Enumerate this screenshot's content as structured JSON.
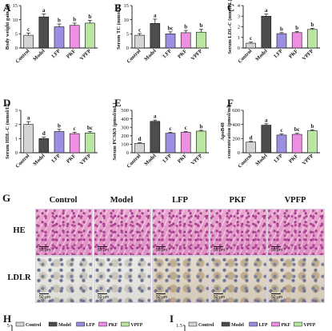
{
  "panels": [
    {
      "letter": "A",
      "ylabel": "Body weight gain (g)",
      "ymax": 15,
      "ticks": [
        0,
        5,
        10,
        15
      ],
      "values": [
        4.5,
        11.0,
        7.5,
        8.0,
        8.8
      ],
      "errors": [
        0.8,
        1.0,
        1.0,
        0.8,
        1.0
      ],
      "sig": [
        "c",
        "a",
        "b",
        "b",
        "b"
      ]
    },
    {
      "letter": "B",
      "ylabel": "Serum TC (mmol/L)",
      "ymax": 15,
      "ticks": [
        0,
        5,
        10,
        15
      ],
      "values": [
        4.5,
        8.7,
        5.0,
        5.4,
        5.6
      ],
      "errors": [
        0.6,
        1.5,
        0.7,
        0.8,
        1.0
      ],
      "sig": [
        "c",
        "a",
        "bc",
        "b",
        "b"
      ]
    },
    {
      "letter": "C",
      "ylabel": "Serum LDL-C (mmol/L)",
      "ymax": 4,
      "ticks": [
        0,
        1,
        2,
        3,
        4
      ],
      "values": [
        0.45,
        3.0,
        1.35,
        1.45,
        1.75
      ],
      "errors": [
        0.1,
        0.2,
        0.1,
        0.1,
        0.1
      ],
      "sig": [
        "c",
        "a",
        "b",
        "b",
        "b"
      ]
    },
    {
      "letter": "D",
      "ylabel": "Serum HDL-C (mmol/L)",
      "ymax": 3,
      "ticks": [
        0,
        1,
        2,
        3
      ],
      "values": [
        2.0,
        1.0,
        1.5,
        1.35,
        1.4
      ],
      "errors": [
        0.2,
        0.1,
        0.15,
        0.1,
        0.1
      ],
      "sig": [
        "a",
        "d",
        "b",
        "c",
        "bc"
      ]
    },
    {
      "letter": "E",
      "ylabel": "Serum PCSK9 (pmol/mL)",
      "ymax": 500,
      "ticks": [
        0,
        100,
        200,
        300,
        400,
        500
      ],
      "values": [
        110,
        370,
        230,
        240,
        255
      ],
      "errors": [
        8,
        15,
        10,
        10,
        10
      ],
      "sig": [
        "d",
        "a",
        "c",
        "c",
        "b"
      ]
    },
    {
      "letter": "F",
      "ylabel": "ApoB48 concentration (pmol/ml)",
      "ymax": 600,
      "ticks": [
        0,
        200,
        400,
        600
      ],
      "values": [
        150,
        390,
        250,
        260,
        310
      ],
      "errors": [
        10,
        20,
        15,
        15,
        15
      ],
      "sig": [
        "d",
        "a",
        "c",
        "bc",
        "b"
      ]
    }
  ],
  "categories": [
    "Control",
    "Model",
    "LFP",
    "PKF",
    "VPFP"
  ],
  "colors": {
    "Control": "#d4d4d4",
    "Model": "#4d4d4d",
    "LFP": "#9a8fe0",
    "PKF": "#ee8fe3",
    "VPFP": "#b9e6a1"
  },
  "panel_g": {
    "letter": "G",
    "row_labels": [
      "HE",
      "LDLR"
    ],
    "scalebar": "50 μm"
  },
  "panel_h": {
    "letter": "H",
    "axis_top": "5",
    "legend": [
      "Control",
      "Model",
      "LFP",
      "PKF",
      "VPFP"
    ]
  },
  "panel_i": {
    "letter": "I",
    "axis_top": "1.5",
    "legend": [
      "Control",
      "Model",
      "LFP",
      "PKF",
      "VPFP"
    ]
  }
}
